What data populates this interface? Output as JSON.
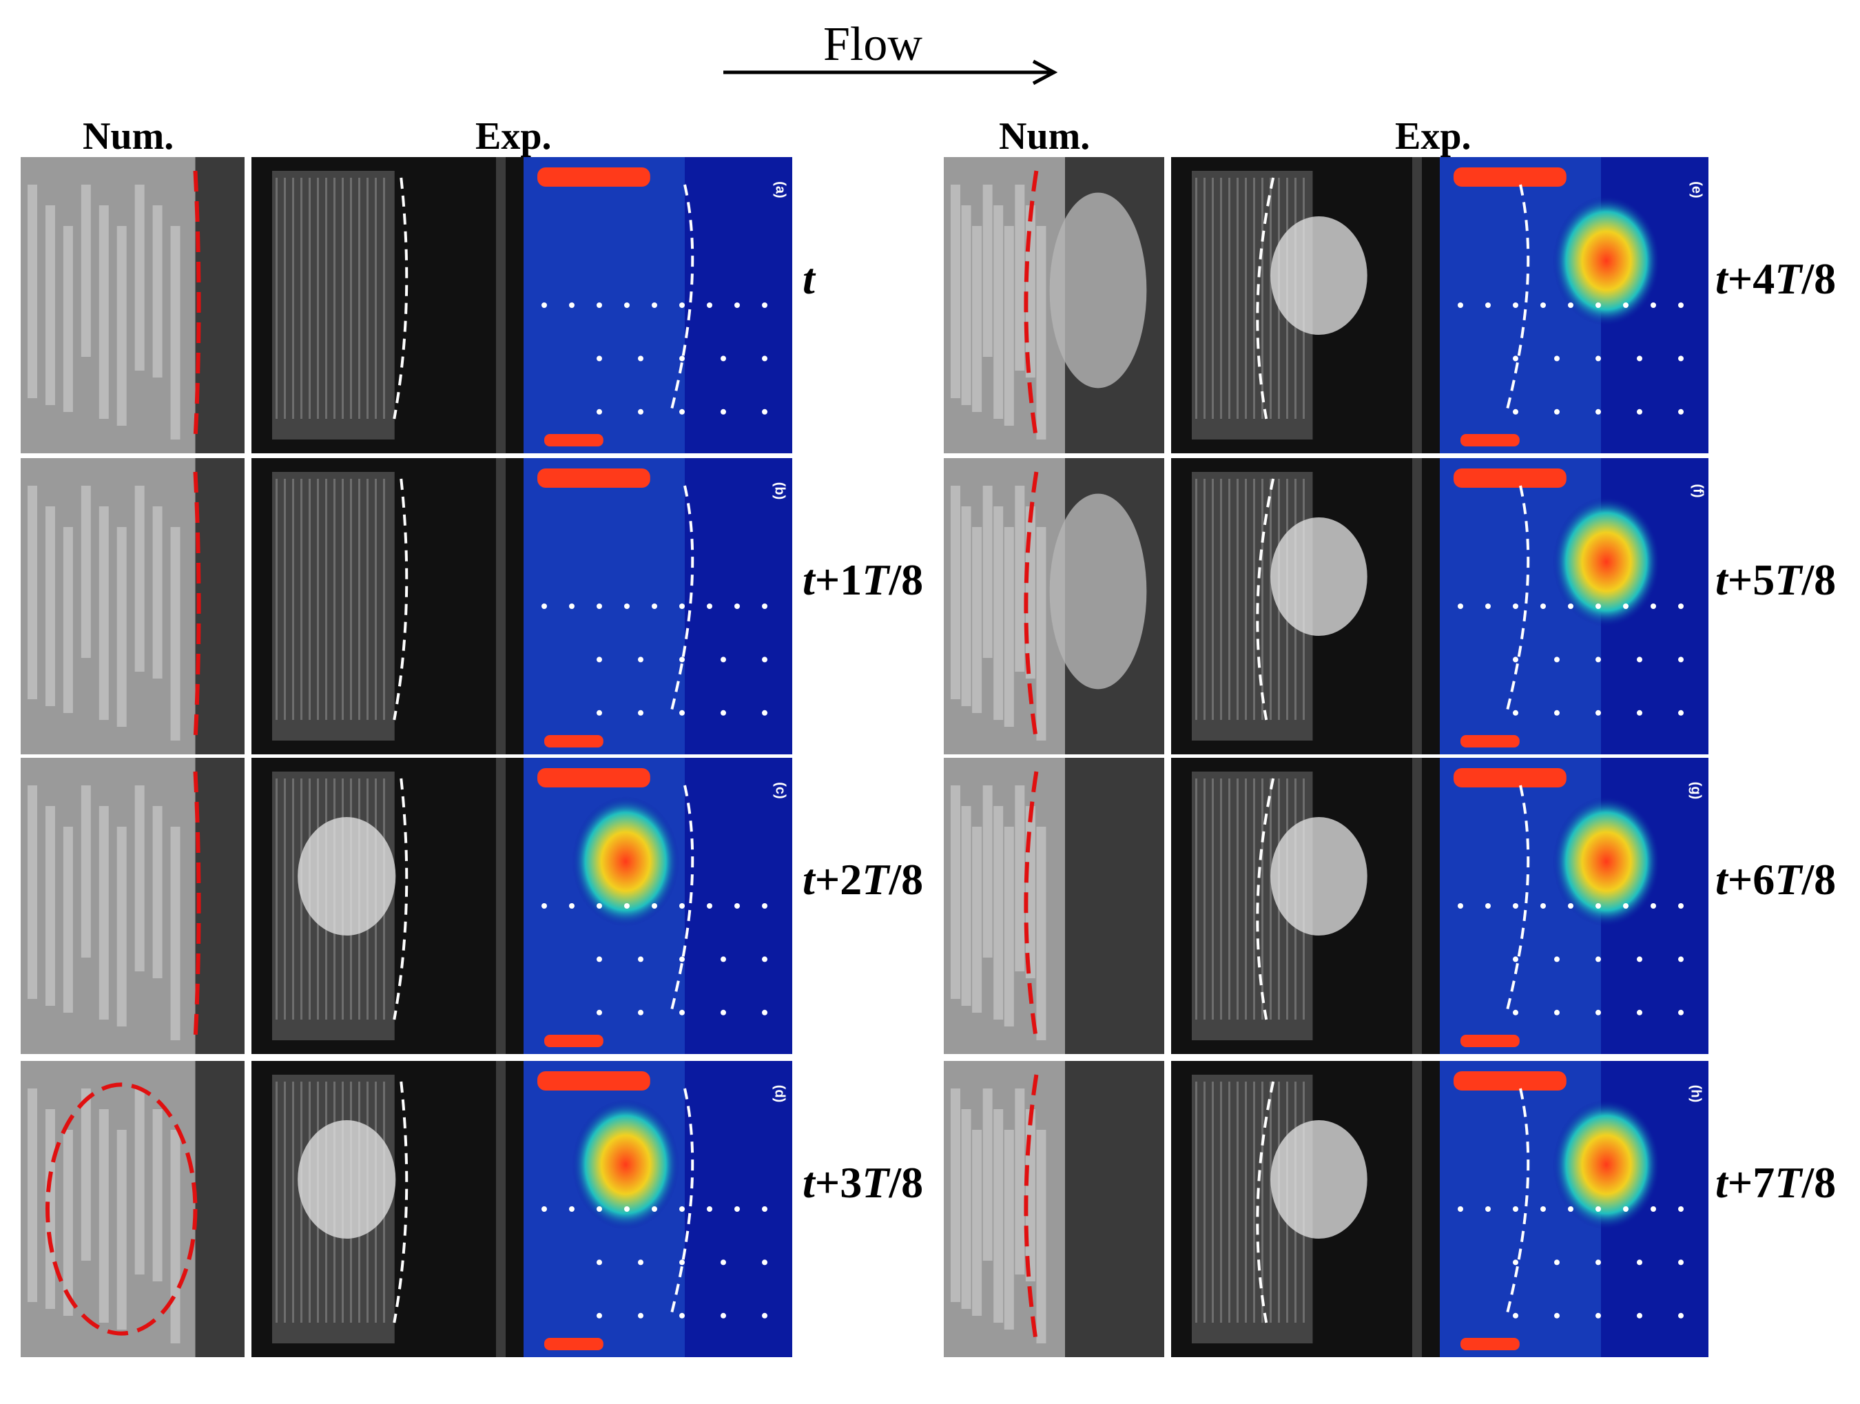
{
  "figure": {
    "flow_label": "Flow",
    "left_group": {
      "num_header": "Num.",
      "exp_header": "Exp."
    },
    "right_group": {
      "num_header": "Num.",
      "exp_header": "Exp."
    },
    "left_rows": [
      {
        "panel_label": "(a)",
        "time_prefix": "t",
        "time_T": "",
        "time_suffix": ""
      },
      {
        "panel_label": "(b)",
        "time_prefix": "t+1",
        "time_T": "T",
        "time_suffix": "/8"
      },
      {
        "panel_label": "(c)",
        "time_prefix": "t+2",
        "time_T": "T",
        "time_suffix": "/8"
      },
      {
        "panel_label": "(d)",
        "time_prefix": "t+3",
        "time_T": "T",
        "time_suffix": "/8"
      }
    ],
    "right_rows": [
      {
        "panel_label": "(e)",
        "time_prefix": "t+4",
        "time_T": "T",
        "time_suffix": "/8"
      },
      {
        "panel_label": "(f)",
        "time_prefix": "t+5",
        "time_T": "T",
        "time_suffix": "/8"
      },
      {
        "panel_label": "(g)",
        "time_prefix": "t+6",
        "time_T": "T",
        "time_suffix": "/8"
      },
      {
        "panel_label": "(h)",
        "time_prefix": "t+7",
        "time_T": "T",
        "time_suffix": "/8"
      }
    ],
    "colors": {
      "numerical_boundary": "#e01010",
      "experimental_boundary": "#ffffff",
      "heatmap_background": "#0a1aa0",
      "heatmap_hot": "#ff3a1a"
    }
  }
}
